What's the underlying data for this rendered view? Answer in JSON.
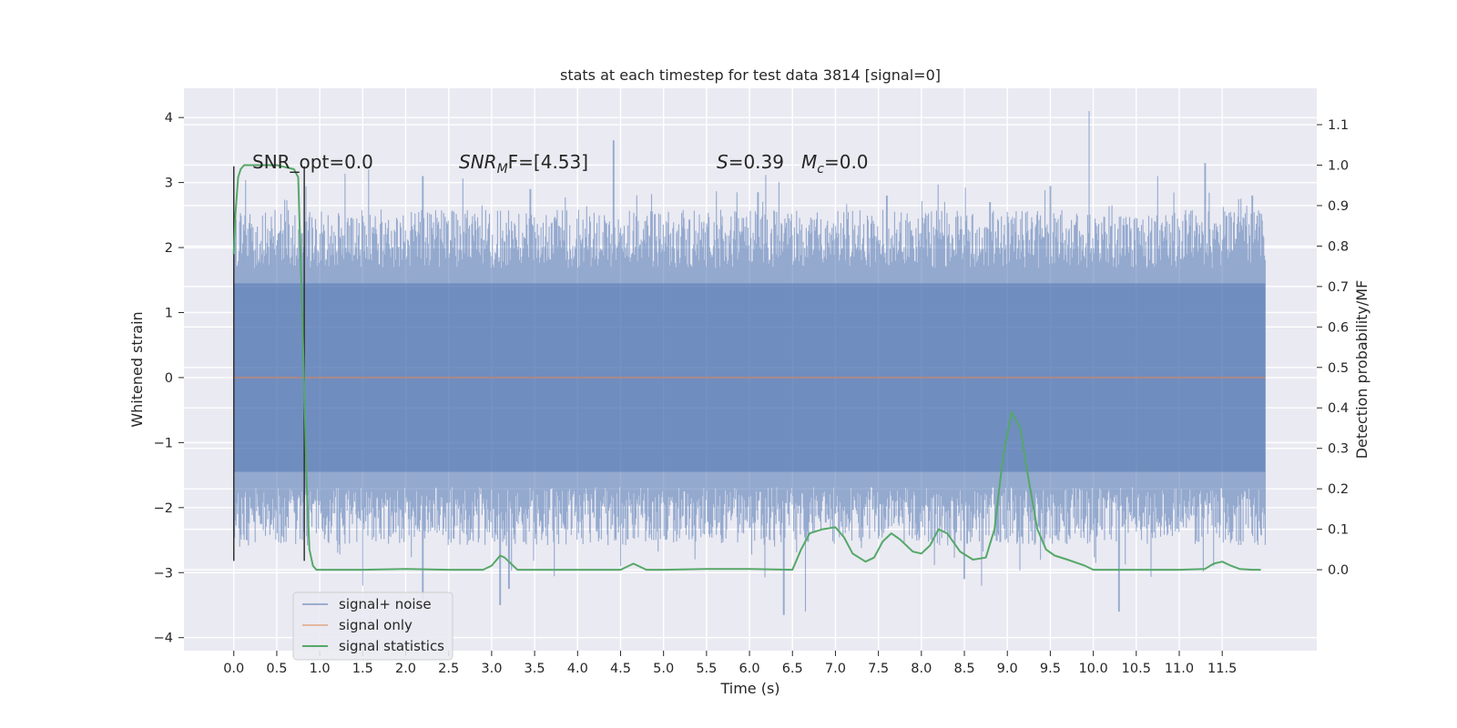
{
  "chart_data": {
    "type": "line",
    "title": "stats at each timestep for test data 3814 [signal=0]",
    "xlabel": "Time (s)",
    "ylabel_left": "Whitened strain",
    "ylabel_right": "Detection probability/MF",
    "xlim": [
      -0.58,
      12.6
    ],
    "ylim_left": [
      -4.2,
      4.45
    ],
    "ylim_right": [
      -0.2,
      1.19
    ],
    "x_ticks": [
      "0.0",
      "0.5",
      "1.0",
      "1.5",
      "2.0",
      "2.5",
      "3.0",
      "3.5",
      "4.0",
      "4.5",
      "5.0",
      "5.5",
      "6.0",
      "6.5",
      "7.0",
      "7.5",
      "8.0",
      "8.5",
      "9.0",
      "9.5",
      "10.0",
      "10.5",
      "11.0",
      "11.5"
    ],
    "y_ticks_left": [
      "4",
      "3",
      "2",
      "1",
      "0",
      "−1",
      "−2",
      "−3",
      "−4"
    ],
    "y_ticks_right": [
      "1.1",
      "1.0",
      "0.9",
      "0.8",
      "0.7",
      "0.6",
      "0.5",
      "0.4",
      "0.3",
      "0.2",
      "0.1",
      "0.0"
    ],
    "grid": true,
    "legend_position": "lower-left",
    "annotations": {
      "snr_opt": "SNR_opt=0.0",
      "snr_mf_sym": "SNR",
      "snr_mf_sub": "M",
      "snr_mf_rest": "F=[4.53]",
      "s_sym": "S",
      "s_rest": "=0.39",
      "mc_sym": "M",
      "mc_sub": "c",
      "mc_rest": "=0.0"
    },
    "noise_envelope": {
      "x_range": [
        0.0,
        12.0
      ],
      "typical_upper": 2.0,
      "typical_lower": -2.0,
      "core_upper": 1.45,
      "core_lower": -1.45,
      "upper_peaks": [
        [
          0.07,
          2.4
        ],
        [
          0.6,
          2.4
        ],
        [
          1.57,
          3.2
        ],
        [
          2.2,
          3.1
        ],
        [
          3.45,
          2.9
        ],
        [
          4.42,
          3.65
        ],
        [
          6.1,
          2.85
        ],
        [
          7.6,
          2.8
        ],
        [
          8.8,
          2.7
        ],
        [
          9.5,
          2.95
        ],
        [
          9.95,
          4.1
        ],
        [
          10.75,
          3.1
        ],
        [
          11.3,
          3.3
        ],
        [
          11.85,
          2.8
        ]
      ],
      "lower_peaks": [
        [
          0.07,
          -2.6
        ],
        [
          1.5,
          -3.2
        ],
        [
          2.2,
          -3.4
        ],
        [
          3.1,
          -3.5
        ],
        [
          3.2,
          -3.25
        ],
        [
          4.5,
          -2.9
        ],
        [
          6.4,
          -3.65
        ],
        [
          6.65,
          -3.6
        ],
        [
          8.5,
          -3.1
        ],
        [
          8.7,
          -3.2
        ],
        [
          10.3,
          -3.6
        ],
        [
          11.4,
          -2.9
        ]
      ]
    },
    "series": [
      {
        "name": "signal+ noise",
        "color": "#4c72b0",
        "axis": "left",
        "render": "noise-band"
      },
      {
        "name": "signal only",
        "color": "#dd8452",
        "axis": "left",
        "x": [
          0.0,
          12.0
        ],
        "y": [
          0.0,
          0.0
        ]
      },
      {
        "name": "signal statistics",
        "color": "#55a868",
        "axis": "right",
        "x": [
          0.0,
          0.02,
          0.05,
          0.08,
          0.12,
          0.18,
          0.3,
          0.5,
          0.7,
          0.75,
          0.8,
          0.85,
          0.88,
          0.92,
          0.96,
          1.0,
          1.05,
          1.5,
          2.0,
          2.5,
          2.9,
          3.0,
          3.1,
          3.15,
          3.3,
          3.5,
          4.0,
          4.5,
          4.65,
          4.8,
          5.0,
          5.5,
          6.0,
          6.5,
          6.6,
          6.7,
          6.85,
          7.0,
          7.1,
          7.2,
          7.35,
          7.45,
          7.55,
          7.65,
          7.75,
          7.9,
          8.0,
          8.1,
          8.2,
          8.3,
          8.45,
          8.6,
          8.75,
          8.85,
          8.95,
          9.05,
          9.15,
          9.25,
          9.35,
          9.45,
          9.55,
          9.7,
          9.9,
          10.0,
          10.5,
          11.0,
          11.3,
          11.4,
          11.5,
          11.6,
          11.7,
          11.85,
          11.95
        ],
        "y": [
          0.78,
          0.88,
          0.97,
          0.99,
          1.0,
          1.0,
          1.0,
          1.0,
          0.99,
          0.97,
          0.6,
          0.2,
          0.05,
          0.01,
          0.0,
          0.0,
          0.0,
          0.0,
          0.002,
          0.0,
          0.0,
          0.01,
          0.035,
          0.03,
          0.0,
          0.0,
          0.0,
          0.0,
          0.015,
          0.0,
          0.0,
          0.002,
          0.002,
          0.0,
          0.05,
          0.09,
          0.1,
          0.105,
          0.08,
          0.04,
          0.02,
          0.03,
          0.07,
          0.09,
          0.075,
          0.045,
          0.04,
          0.06,
          0.1,
          0.09,
          0.045,
          0.025,
          0.03,
          0.1,
          0.28,
          0.39,
          0.35,
          0.22,
          0.1,
          0.05,
          0.035,
          0.025,
          0.01,
          0.0,
          0.0,
          0.0,
          0.002,
          0.015,
          0.02,
          0.01,
          0.002,
          0.0,
          0.0
        ]
      }
    ],
    "vertical_markers": [
      0.0,
      0.82
    ],
    "vertical_marker_range_left": [
      -2.82,
      3.25
    ]
  },
  "legend": {
    "items": [
      "signal+ noise",
      "signal only",
      "signal statistics"
    ]
  }
}
